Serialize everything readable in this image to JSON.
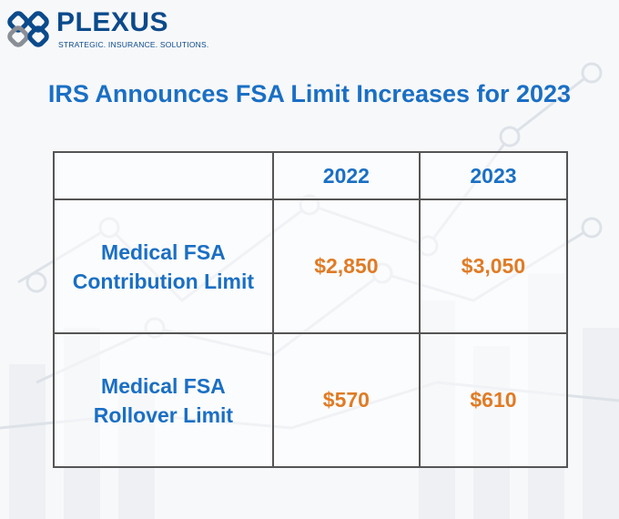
{
  "brand": {
    "name": "PLEXUS",
    "tagline": "STRATEGIC. INSURANCE. SOLUTIONS.",
    "primary_color": "#0b4a8b",
    "logo_gray": "#8a8f96"
  },
  "title": "IRS Announces FSA Limit Increases for 2023",
  "table": {
    "columns": [
      "",
      "2022",
      "2023"
    ],
    "rows": [
      {
        "label_line1": "Medical FSA",
        "label_line2": "Contribution Limit",
        "v2022": "$2,850",
        "v2023": "$3,050"
      },
      {
        "label_line1": "Medical FSA",
        "label_line2": "Rollover Limit",
        "v2022": "$570",
        "v2023": "$610"
      }
    ]
  },
  "colors": {
    "heading_blue": "#1a6fc4",
    "value_orange": "#e07b25",
    "border": "#555555"
  }
}
